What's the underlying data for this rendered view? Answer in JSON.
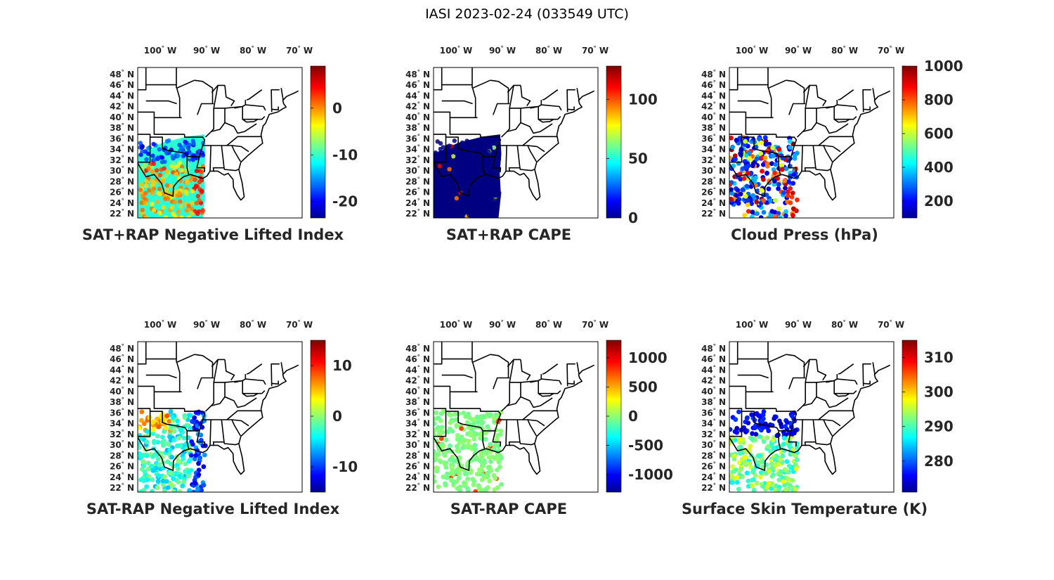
{
  "title": "IASI 2023-02-24 (033549 UTC)",
  "lon_labels": [
    "100",
    "90",
    "80",
    "70"
  ],
  "lon_hemisphere": "W",
  "lat_labels": [
    "48",
    "46",
    "44",
    "42",
    "40",
    "38",
    "36",
    "34",
    "32",
    "30",
    "28",
    "26",
    "24",
    "22"
  ],
  "lat_hemisphere": "N",
  "degree_mark": "°",
  "colormap": "jet",
  "colors": {
    "map_border": "#000000",
    "colorbar_low": "#00008f",
    "colorbar_high": "#800000"
  },
  "panels": [
    {
      "title": "SAT+RAP Negative Lifted Index",
      "colorbar": {
        "min": -23.5,
        "max": 9,
        "ticks": [
          "0",
          "-10",
          "-20"
        ],
        "tick_values": [
          0,
          -10,
          -20
        ]
      },
      "swath": "full",
      "dominant_value": -10
    },
    {
      "title": "SAT+RAP CAPE",
      "colorbar": {
        "min": 0,
        "max": 128,
        "ticks": [
          "100",
          "50",
          "0"
        ],
        "tick_values": [
          100,
          50,
          0
        ]
      },
      "swath": "full",
      "dominant_value": 0
    },
    {
      "title": "Cloud Press (hPa)",
      "colorbar": {
        "min": 100,
        "max": 1000,
        "ticks": [
          "1000",
          "800",
          "600",
          "400",
          "200"
        ],
        "tick_values": [
          1000,
          800,
          600,
          400,
          200
        ]
      },
      "swath": "dots",
      "dominant_value": 300
    },
    {
      "title": "SAT-RAP Negative Lifted Index",
      "colorbar": {
        "min": -15,
        "max": 15,
        "ticks": [
          "10",
          "0",
          "-10"
        ],
        "tick_values": [
          10,
          0,
          -10
        ]
      },
      "swath": "dots",
      "dominant_value": -3
    },
    {
      "title": "SAT-RAP CAPE",
      "colorbar": {
        "min": -1300,
        "max": 1300,
        "ticks": [
          "1000",
          "500",
          "0",
          "-500",
          "-1000"
        ],
        "tick_values": [
          1000,
          500,
          0,
          -500,
          -1000
        ]
      },
      "swath": "dots",
      "dominant_value": 0
    },
    {
      "title": "Surface Skin Temperature (K)",
      "colorbar": {
        "min": 271,
        "max": 315,
        "ticks": [
          "310",
          "300",
          "290",
          "280"
        ],
        "tick_values": [
          310,
          300,
          290,
          280
        ]
      },
      "swath": "dots",
      "dominant_value": 290
    }
  ]
}
